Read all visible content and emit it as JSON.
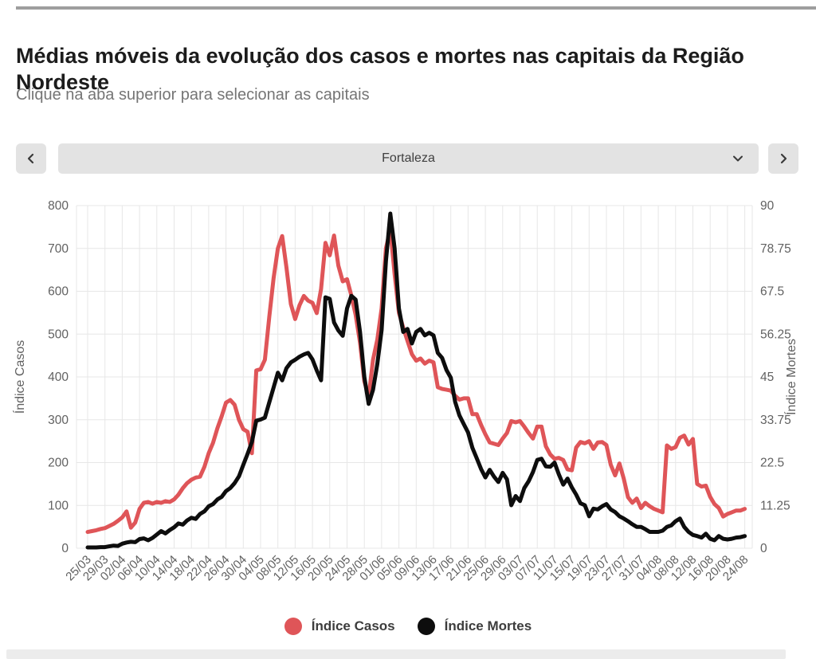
{
  "header": {
    "title": "Médias móveis da evolução dos casos e mortes nas capitais da Região Nordeste",
    "subtitle": "Clique na aba superior para selecionar as capitais"
  },
  "selector": {
    "selected": "Fortaleza",
    "prev_icon": "chevron-left-icon",
    "next_icon": "chevron-right-icon",
    "open_icon": "chevron-down-icon"
  },
  "legend": [
    {
      "label": "Índice Casos",
      "color": "#df5558"
    },
    {
      "label": "Índice Mortes",
      "color": "#0d0d0d"
    }
  ],
  "colors": {
    "casos": "#df5558",
    "mortes": "#0d0d0d",
    "grid": "#e7e7e7",
    "axis_text": "#616161",
    "top_border": "#9e9e9e",
    "control_bg": "#e3e3e3"
  },
  "chart_data": {
    "type": "line",
    "title": "Médias móveis da evolução dos casos e mortes nas capitais da Região Nordeste",
    "x_tick_labels": [
      "25/03",
      "29/03",
      "02/04",
      "06/04",
      "10/04",
      "14/04",
      "18/04",
      "22/04",
      "26/04",
      "30/04",
      "04/05",
      "08/05",
      "12/05",
      "16/05",
      "20/05",
      "24/05",
      "28/05",
      "01/06",
      "05/06",
      "09/06",
      "13/06",
      "17/06",
      "21/06",
      "25/06",
      "29/06",
      "03/07",
      "07/07",
      "11/07",
      "15/07",
      "19/07",
      "23/07",
      "27/07",
      "31/07",
      "04/08",
      "08/08",
      "12/08",
      "16/08",
      "20/08",
      "24/08"
    ],
    "days_per_tick": 4,
    "ylabel_left": "Índice Casos",
    "ylabel_right": "Índice Mortes",
    "ylim_left": [
      0,
      800
    ],
    "ylim_right": [
      0,
      90
    ],
    "yticks_left": [
      0,
      100,
      200,
      300,
      400,
      500,
      600,
      700,
      800
    ],
    "yticks_right": [
      "0",
      "11.25",
      "22.5",
      "33.75",
      "45",
      "56.25",
      "67.5",
      "78.75",
      "90"
    ],
    "grid": true,
    "legend_position": "bottom",
    "series": [
      {
        "name": "Índice Casos",
        "axis": "left",
        "color": "#df5558",
        "values": [
          38,
          40,
          42,
          45,
          47,
          52,
          57,
          64,
          72,
          86,
          48,
          60,
          92,
          106,
          108,
          104,
          108,
          106,
          110,
          108,
          114,
          125,
          140,
          152,
          160,
          165,
          167,
          190,
          222,
          246,
          280,
          308,
          340,
          346,
          335,
          300,
          278,
          272,
          222,
          415,
          418,
          440,
          540,
          630,
          700,
          729,
          655,
          570,
          535,
          567,
          589,
          578,
          573,
          549,
          605,
          713,
          684,
          730,
          660,
          623,
          628,
          590,
          545,
          480,
          390,
          353,
          440,
          487,
          560,
          700,
          745,
          640,
          550,
          515,
          484,
          453,
          438,
          443,
          431,
          438,
          434,
          376,
          372,
          370,
          368,
          356,
          347,
          350,
          350,
          313,
          313,
          288,
          266,
          247,
          244,
          241,
          256,
          269,
          297,
          294,
          297,
          284,
          269,
          256,
          284,
          284,
          238,
          219,
          209,
          211,
          206,
          184,
          182,
          235,
          248,
          245,
          250,
          232,
          247,
          248,
          241,
          195,
          170,
          198,
          163,
          119,
          106,
          116,
          94,
          106,
          98,
          92,
          88,
          84,
          240,
          232,
          236,
          258,
          263,
          242,
          255,
          150,
          144,
          146,
          120,
          103,
          94,
          74,
          80,
          84,
          88,
          88,
          92
        ]
      },
      {
        "name": "Índice Mortes",
        "axis": "right",
        "color": "#0d0d0d",
        "values": [
          0.2,
          0.2,
          0.2,
          0.3,
          0.3,
          0.5,
          0.7,
          0.6,
          1.2,
          1.5,
          1.7,
          1.6,
          2.4,
          2.6,
          2.1,
          2.7,
          3.6,
          4.5,
          3.9,
          4.8,
          5.5,
          6.5,
          6.2,
          7.3,
          8.0,
          7.7,
          9.0,
          9.7,
          11.0,
          11.6,
          12.8,
          13.5,
          15.0,
          15.8,
          17.1,
          18.9,
          21.9,
          24.8,
          27.9,
          33.5,
          33.8,
          34.3,
          38.3,
          42.2,
          46.1,
          44.1,
          47.3,
          48.8,
          49.5,
          50.3,
          50.9,
          51.3,
          49.6,
          46.7,
          44.1,
          65.9,
          65.5,
          59.3,
          57.2,
          55.8,
          63.0,
          66.3,
          65.3,
          56.8,
          45.0,
          37.9,
          41.6,
          48.4,
          57.3,
          75.4,
          87.9,
          78.8,
          63.0,
          56.8,
          57.6,
          53.8,
          56.8,
          57.6,
          55.9,
          56.6,
          55.9,
          51.3,
          50.0,
          46.8,
          44.8,
          38.5,
          34.9,
          32.6,
          30.4,
          26.4,
          23.6,
          20.8,
          18.6,
          20.6,
          18.8,
          17.4,
          19.8,
          18.1,
          11.3,
          13.7,
          12.4,
          15.8,
          17.6,
          20.0,
          23.2,
          23.5,
          21.5,
          21.4,
          22.5,
          19.4,
          16.7,
          18.3,
          16.0,
          14.1,
          11.8,
          11.3,
          8.4,
          10.4,
          10.2,
          11.0,
          11.6,
          10.2,
          9.5,
          8.4,
          7.8,
          7.1,
          6.3,
          5.6,
          5.6,
          5.0,
          4.3,
          4.3,
          4.3,
          4.6,
          5.6,
          6.0,
          7.1,
          7.8,
          5.6,
          4.3,
          3.5,
          3.2,
          2.8,
          3.8,
          2.5,
          2.1,
          3.2,
          2.5,
          2.3,
          2.5,
          2.8,
          2.9,
          3.2
        ]
      }
    ]
  }
}
